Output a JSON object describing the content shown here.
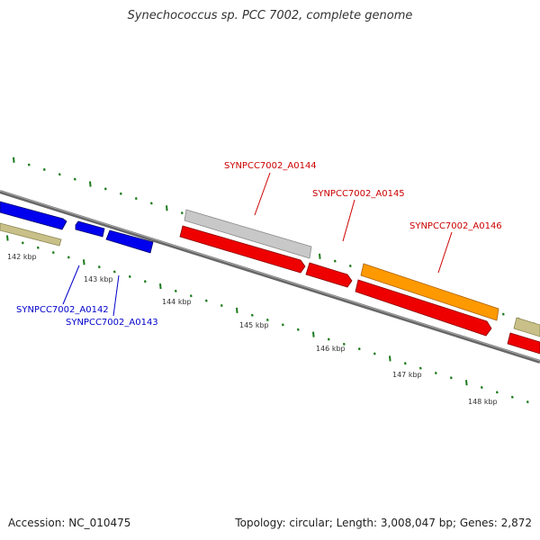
{
  "title": "Synechococcus sp. PCC 7002, complete genome",
  "footer": {
    "accession": "Accession: NC_010475",
    "summary": "Topology: circular; Length: 3,008,047 bp; Genes: 2,872"
  },
  "ticks": [
    "142 kbp",
    "143 kbp",
    "144 kbp",
    "145 kbp",
    "146 kbp",
    "147 kbp",
    "148 kbp"
  ],
  "gene_labels": {
    "a0142": "SYNPCC7002_A0142",
    "a0143": "SYNPCC7002_A0143",
    "a0144": "SYNPCC7002_A0144",
    "a0145": "SYNPCC7002_A0145",
    "a0146": "SYNPCC7002_A0146"
  },
  "colors": {
    "plus_strand_cds": "#0000ee",
    "minus_strand_cds": "#ee0000",
    "gray_feature": "#c8c8c8",
    "orange_feature": "#ff9900",
    "olive_feature": "#c8c088",
    "tick_marks": "#1a7a1a",
    "backbone": "#777777",
    "label_blue": "#0000cc",
    "label_red": "#cc0000"
  }
}
